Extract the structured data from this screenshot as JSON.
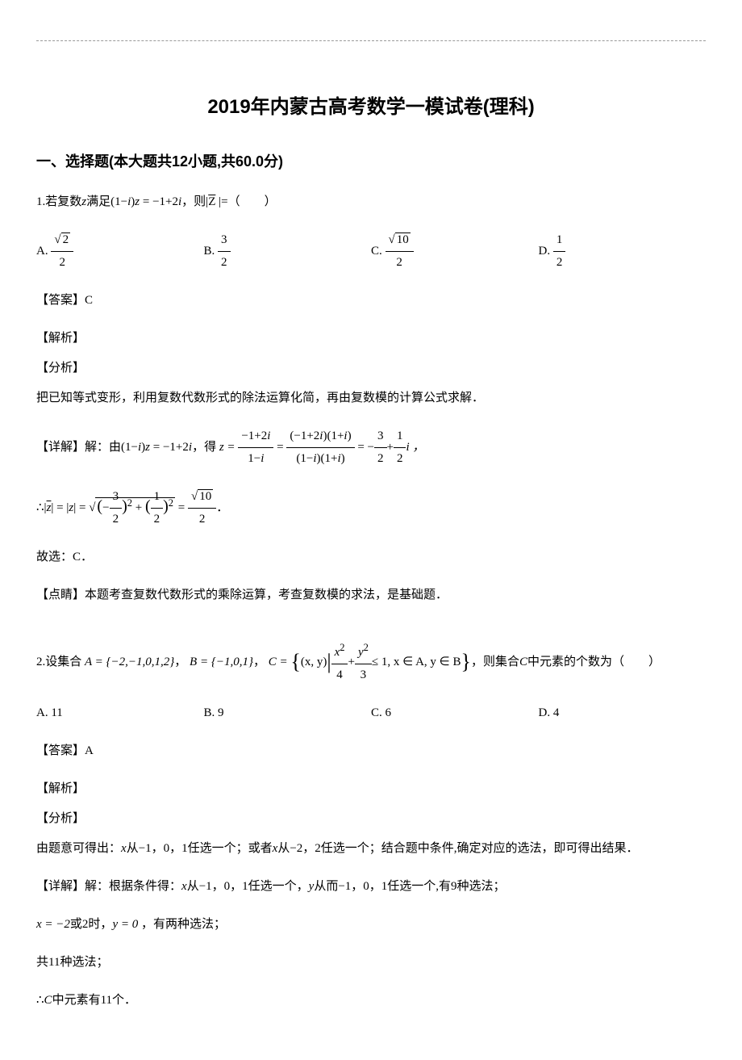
{
  "title": "2019年内蒙古高考数学一模试卷(理科)",
  "section_header": "一、选择题(本大题共12小题,共60.0分)",
  "q1": {
    "number": "1.",
    "stem_prefix": "若复数",
    "stem_var": "z",
    "stem_mid": "满足",
    "stem_eq": "(1−i)z = −1+2i",
    "stem_suffix1": "，则|",
    "stem_zbar": "Z",
    "stem_suffix2": " |=（　　）",
    "options": {
      "A_label": "A.",
      "A_num": "√2",
      "A_den": "2",
      "B_label": "B.",
      "B_num": "3",
      "B_den": "2",
      "C_label": "C.",
      "C_num": "√10",
      "C_den": "2",
      "D_label": "D.",
      "D_num": "1",
      "D_den": "2"
    },
    "answer_label": "【答案】",
    "answer": "C",
    "analysis_label": "【解析】",
    "analysis_sub": "【分析】",
    "analysis_text": "把已知等式变形，利用复数代数形式的除法运算化简，再由复数模的计算公式求解．",
    "detail_label": "【详解】",
    "detail_prefix": "解：由",
    "detail_eq1": "(1−i)z = −1+2i",
    "detail_mid1": "，得",
    "z_eq": "z =",
    "frac1_num": "−1+2i",
    "frac1_den": "1−i",
    "eq_sign": "=",
    "frac2_num": "(−1+2i)(1+i)",
    "frac2_den": "(1−i)(1+i)",
    "result_eq": "= −",
    "frac3_num": "3",
    "frac3_den": "2",
    "plus": "+",
    "frac4_num": "1",
    "frac4_den": "2",
    "i_suffix": "i ，",
    "therefore": "∴",
    "zbar_abs": "|z̄| = |z| =",
    "sqrt_open": "√",
    "sq1_num": "3",
    "sq1_den": "2",
    "sq_plus": "+",
    "sq2_num": "1",
    "sq2_den": "2",
    "final_eq": "=",
    "final_num": "√10",
    "final_den": "2",
    "period": "．",
    "conclusion": "故选：C．",
    "comment_label": "【点睛】",
    "comment": "本题考查复数代数形式的乘除运算，考查复数模的求法，是基础题．"
  },
  "q2": {
    "number": "2.",
    "stem_prefix": "设集合",
    "setA": "A = {−2,−1,0,1,2}",
    "comma1": "，",
    "setB": "B = {−1,0,1}",
    "comma2": "，",
    "setC_prefix": "C =",
    "setC_open": "{",
    "setC_elem": "(x, y)",
    "setC_bar": "|",
    "setC_frac1_num": "x²",
    "setC_frac1_den": "4",
    "setC_plus": "+",
    "setC_frac2_num": "y²",
    "setC_frac2_den": "3",
    "setC_cond": "≤ 1, x ∈ A, y ∈ B",
    "setC_close": "}",
    "stem_suffix": "，则集合",
    "stem_C": "C",
    "stem_end": "中元素的个数为（　　）",
    "options": {
      "A_label": "A.",
      "A_val": "11",
      "B_label": "B.",
      "B_val": "9",
      "C_label": "C.",
      "C_val": "6",
      "D_label": "D.",
      "D_val": "4"
    },
    "answer_label": "【答案】",
    "answer": "A",
    "analysis_label": "【解析】",
    "analysis_sub": "【分析】",
    "analysis_p1": "由题意可得出：",
    "analysis_x": "x",
    "analysis_p2": "从−1，0，1任选一个；或者",
    "analysis_x2": "x",
    "analysis_p3": "从−2，2任选一个；结合题中条件,确定对应的选法，即可得出结果．",
    "detail_label": "【详解】",
    "detail_prefix": "解：根据条件得：",
    "detail_x1": "x",
    "detail_p1": "从−1，0，1任选一个，",
    "detail_y": "y",
    "detail_p2": "从而−1，0，1任选一个,有9种选法；",
    "case2_x": "x = −2",
    "case2_or": "或",
    "case2_val": "2",
    "case2_when": "时，",
    "case2_y": "y = 0",
    "case2_end": " ，有两种选法；",
    "total": "共11种选法；",
    "conclusion": "∴",
    "conc_C": "C",
    "conc_text": "中元素有11个．"
  }
}
